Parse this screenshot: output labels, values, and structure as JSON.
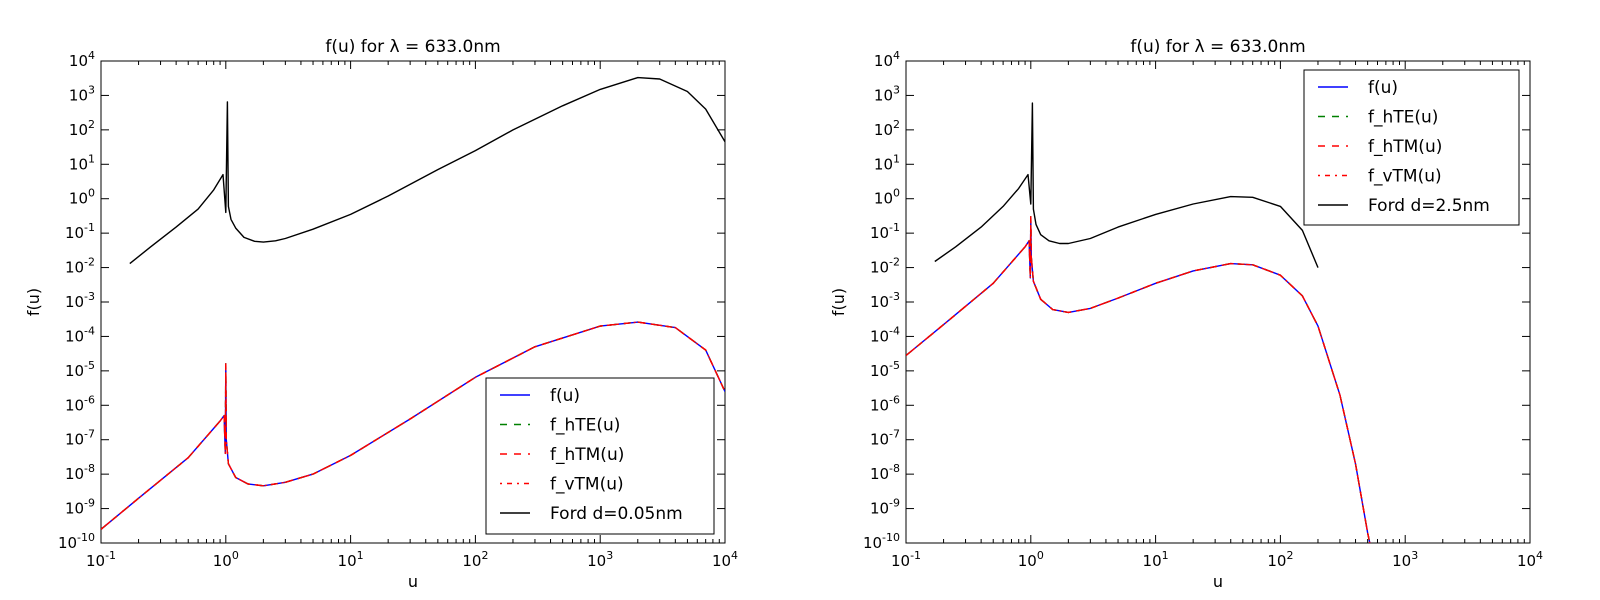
{
  "figure": {
    "panels": [
      "left",
      "right"
    ]
  },
  "colors": {
    "f_u": "#0000ff",
    "f_hTE": "#008000",
    "f_hTM": "#ff0000",
    "f_vTM": "#ff0000",
    "ford": "#000000"
  },
  "chart_data": [
    {
      "type": "line",
      "title": "f(u) for λ = 633.0nm",
      "xlabel": "u",
      "ylabel": "f(u)",
      "xscale": "log",
      "yscale": "log",
      "xlim": [
        0.1,
        10000
      ],
      "ylim": [
        1e-10,
        10000
      ],
      "x_ticks": [
        {
          "base": "10",
          "exp": "-1"
        },
        {
          "base": "10",
          "exp": "0"
        },
        {
          "base": "10",
          "exp": "1"
        },
        {
          "base": "10",
          "exp": "2"
        },
        {
          "base": "10",
          "exp": "3"
        },
        {
          "base": "10",
          "exp": "4"
        }
      ],
      "y_ticks": [
        {
          "base": "10",
          "exp": "-10"
        },
        {
          "base": "10",
          "exp": "-9"
        },
        {
          "base": "10",
          "exp": "-8"
        },
        {
          "base": "10",
          "exp": "-7"
        },
        {
          "base": "10",
          "exp": "-6"
        },
        {
          "base": "10",
          "exp": "-5"
        },
        {
          "base": "10",
          "exp": "-4"
        },
        {
          "base": "10",
          "exp": "-3"
        },
        {
          "base": "10",
          "exp": "-2"
        },
        {
          "base": "10",
          "exp": "-1"
        },
        {
          "base": "10",
          "exp": "0"
        },
        {
          "base": "10",
          "exp": "1"
        },
        {
          "base": "10",
          "exp": "2"
        },
        {
          "base": "10",
          "exp": "3"
        },
        {
          "base": "10",
          "exp": "4"
        }
      ],
      "grid": false,
      "legend_position": "lower-right",
      "series": [
        {
          "name": "f(u)",
          "color": "#0000ff",
          "style": "solid",
          "x": [
            0.1,
            0.2,
            0.5,
            0.9,
            0.97,
            0.99,
            1.0,
            1.01,
            1.05,
            1.2,
            1.5,
            2,
            3,
            5,
            10,
            30,
            100,
            300,
            1000,
            2000,
            4000,
            7000,
            10000
          ],
          "y": [
            2.5e-10,
            2e-09,
            3e-08,
            3.5e-07,
            5e-07,
            4e-08,
            1.6e-05,
            1e-07,
            2e-08,
            8e-09,
            5.2e-09,
            4.6e-09,
            5.8e-09,
            1e-08,
            3.5e-08,
            4e-07,
            6.5e-06,
            5e-05,
            0.0002,
            0.00026,
            0.00018,
            4e-05,
            2.5e-06
          ]
        },
        {
          "name": "f_hTE(u)",
          "color": "#008000",
          "style": "dashed",
          "x": [
            0.1,
            0.2,
            0.5,
            0.9,
            0.97,
            0.99,
            1.0,
            1.01,
            1.05,
            1.2,
            1.5,
            2,
            3,
            5,
            10,
            30,
            100,
            300,
            1000,
            2000,
            4000,
            7000,
            10000
          ],
          "y": [
            2.5e-10,
            2e-09,
            3e-08,
            3.5e-07,
            5e-07,
            4e-08,
            1.6e-05,
            1e-07,
            2e-08,
            8e-09,
            5.2e-09,
            4.6e-09,
            5.8e-09,
            1e-08,
            3.5e-08,
            4e-07,
            6.5e-06,
            5e-05,
            0.0002,
            0.00026,
            0.00018,
            4e-05,
            2.5e-06
          ]
        },
        {
          "name": "f_hTM(u)",
          "color": "#ff0000",
          "style": "dashed",
          "x": [
            0.1,
            0.2,
            0.5,
            0.9,
            0.97,
            0.99,
            1.0,
            1.01,
            1.05,
            1.2,
            1.5,
            2,
            3,
            5,
            10,
            30,
            100,
            300,
            1000,
            2000,
            4000,
            7000,
            10000
          ],
          "y": [
            2.5e-10,
            2e-09,
            3e-08,
            3.5e-07,
            5e-07,
            4e-08,
            1.6e-05,
            1e-07,
            2e-08,
            8e-09,
            5.2e-09,
            4.6e-09,
            5.8e-09,
            1e-08,
            3.5e-08,
            4e-07,
            6.5e-06,
            5e-05,
            0.0002,
            0.00026,
            0.00018,
            4e-05,
            2.5e-06
          ]
        },
        {
          "name": "f_vTM(u)",
          "color": "#ff0000",
          "style": "dashdot",
          "x": [
            0.1,
            0.2,
            0.5,
            0.9,
            0.97,
            0.99,
            1.0,
            1.01,
            1.05,
            1.2,
            1.5,
            2,
            3,
            5,
            10,
            30,
            100,
            300,
            1000,
            2000,
            4000,
            7000,
            10000
          ],
          "y": [
            2.5e-10,
            2e-09,
            3e-08,
            3.5e-07,
            5e-07,
            4e-08,
            1.6e-05,
            1e-07,
            2e-08,
            8e-09,
            5.2e-09,
            4.6e-09,
            5.8e-09,
            1e-08,
            3.5e-08,
            4e-07,
            6.5e-06,
            5e-05,
            0.0002,
            0.00026,
            0.00018,
            4e-05,
            2.5e-06
          ]
        },
        {
          "name": "Ford d=0.05nm",
          "color": "#000000",
          "style": "solid",
          "x": [
            0.17,
            0.25,
            0.4,
            0.6,
            0.8,
            0.95,
            1.0,
            1.03,
            1.05,
            1.1,
            1.2,
            1.4,
            1.7,
            2,
            2.5,
            3,
            5,
            10,
            20,
            50,
            100,
            200,
            500,
            1000,
            2000,
            3000,
            5000,
            7000,
            10000
          ],
          "y": [
            0.013,
            0.04,
            0.15,
            0.5,
            1.8,
            5,
            0.4,
            650,
            0.6,
            0.25,
            0.14,
            0.075,
            0.058,
            0.055,
            0.06,
            0.07,
            0.13,
            0.35,
            1.2,
            7,
            25,
            100,
            500,
            1500,
            3300,
            3000,
            1300,
            400,
            45
          ]
        }
      ]
    },
    {
      "type": "line",
      "title": "f(u) for λ = 633.0nm",
      "xlabel": "u",
      "ylabel": "f(u)",
      "xscale": "log",
      "yscale": "log",
      "xlim": [
        0.1,
        10000
      ],
      "ylim": [
        1e-10,
        10000
      ],
      "x_ticks": [
        {
          "base": "10",
          "exp": "-1"
        },
        {
          "base": "10",
          "exp": "0"
        },
        {
          "base": "10",
          "exp": "1"
        },
        {
          "base": "10",
          "exp": "2"
        },
        {
          "base": "10",
          "exp": "3"
        },
        {
          "base": "10",
          "exp": "4"
        }
      ],
      "y_ticks": [
        {
          "base": "10",
          "exp": "-10"
        },
        {
          "base": "10",
          "exp": "-9"
        },
        {
          "base": "10",
          "exp": "-8"
        },
        {
          "base": "10",
          "exp": "-7"
        },
        {
          "base": "10",
          "exp": "-6"
        },
        {
          "base": "10",
          "exp": "-5"
        },
        {
          "base": "10",
          "exp": "-4"
        },
        {
          "base": "10",
          "exp": "-3"
        },
        {
          "base": "10",
          "exp": "-2"
        },
        {
          "base": "10",
          "exp": "-1"
        },
        {
          "base": "10",
          "exp": "0"
        },
        {
          "base": "10",
          "exp": "1"
        },
        {
          "base": "10",
          "exp": "2"
        },
        {
          "base": "10",
          "exp": "3"
        },
        {
          "base": "10",
          "exp": "4"
        }
      ],
      "grid": false,
      "legend_position": "upper-right",
      "series": [
        {
          "name": "f(u)",
          "color": "#0000ff",
          "style": "solid",
          "x": [
            0.1,
            0.2,
            0.5,
            0.9,
            0.97,
            0.99,
            1.0,
            1.01,
            1.05,
            1.2,
            1.5,
            2,
            3,
            5,
            10,
            20,
            40,
            60,
            100,
            150,
            200,
            300,
            400,
            500,
            520
          ],
          "y": [
            2.8e-05,
            0.00022,
            0.0035,
            0.04,
            0.06,
            0.005,
            0.3,
            0.02,
            0.004,
            0.0012,
            0.0006,
            0.0005,
            0.00065,
            0.0013,
            0.0035,
            0.008,
            0.013,
            0.012,
            0.006,
            0.0015,
            0.0002,
            2e-06,
            2e-08,
            2e-10,
            1e-10
          ]
        },
        {
          "name": "f_hTE(u)",
          "color": "#008000",
          "style": "dashed",
          "x": [
            0.1,
            0.2,
            0.5,
            0.9,
            0.97,
            0.99,
            1.0,
            1.01,
            1.05,
            1.2,
            1.5,
            2,
            3,
            5,
            10,
            20,
            40,
            60,
            100,
            150,
            200,
            300,
            400,
            500,
            520
          ],
          "y": [
            2.8e-05,
            0.00022,
            0.0035,
            0.04,
            0.06,
            0.005,
            0.3,
            0.02,
            0.004,
            0.0012,
            0.0006,
            0.0005,
            0.00065,
            0.0013,
            0.0035,
            0.008,
            0.013,
            0.012,
            0.006,
            0.0015,
            0.0002,
            2e-06,
            2e-08,
            2e-10,
            1e-10
          ]
        },
        {
          "name": "f_hTM(u)",
          "color": "#ff0000",
          "style": "dashed",
          "x": [
            0.1,
            0.2,
            0.5,
            0.9,
            0.97,
            0.99,
            1.0,
            1.01,
            1.05,
            1.2,
            1.5,
            2,
            3,
            5,
            10,
            20,
            40,
            60,
            100,
            150,
            200,
            300,
            400,
            500,
            520
          ],
          "y": [
            2.8e-05,
            0.00022,
            0.0035,
            0.04,
            0.06,
            0.005,
            0.3,
            0.02,
            0.004,
            0.0012,
            0.0006,
            0.0005,
            0.00065,
            0.0013,
            0.0035,
            0.008,
            0.013,
            0.012,
            0.006,
            0.0015,
            0.0002,
            2e-06,
            2e-08,
            2e-10,
            1e-10
          ]
        },
        {
          "name": "f_vTM(u)",
          "color": "#ff0000",
          "style": "dashdot",
          "x": [
            0.1,
            0.2,
            0.5,
            0.9,
            0.97,
            0.99,
            1.0,
            1.01,
            1.05,
            1.2,
            1.5,
            2,
            3,
            5,
            10,
            20,
            40,
            60,
            100,
            150,
            200,
            300,
            400,
            500,
            520
          ],
          "y": [
            2.8e-05,
            0.00022,
            0.0035,
            0.04,
            0.06,
            0.005,
            0.3,
            0.02,
            0.004,
            0.0012,
            0.0006,
            0.0005,
            0.00065,
            0.0013,
            0.0035,
            0.008,
            0.013,
            0.012,
            0.006,
            0.0015,
            0.0002,
            2e-06,
            2e-08,
            2e-10,
            1e-10
          ]
        },
        {
          "name": "Ford d=2.5nm",
          "color": "#000000",
          "style": "solid",
          "x": [
            0.17,
            0.25,
            0.4,
            0.6,
            0.8,
            0.95,
            1.0,
            1.03,
            1.05,
            1.1,
            1.2,
            1.4,
            1.7,
            2,
            3,
            5,
            10,
            20,
            40,
            60,
            100,
            150,
            200
          ],
          "y": [
            0.015,
            0.04,
            0.15,
            0.6,
            2,
            5,
            0.7,
            600,
            0.5,
            0.18,
            0.09,
            0.06,
            0.05,
            0.05,
            0.07,
            0.15,
            0.35,
            0.7,
            1.15,
            1.1,
            0.6,
            0.12,
            0.01
          ]
        }
      ]
    }
  ]
}
